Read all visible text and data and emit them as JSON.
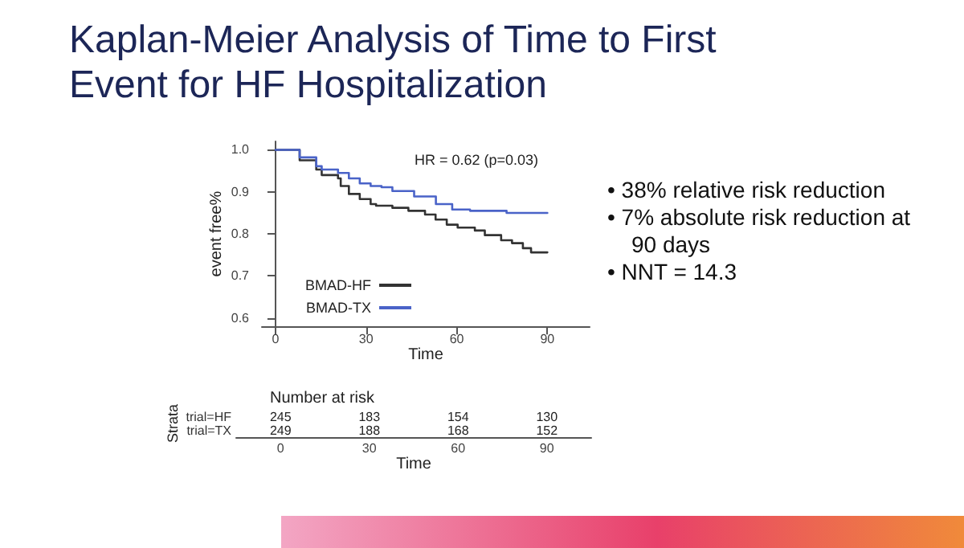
{
  "chart_data": [
    {
      "type": "step",
      "title": "Kaplan-Meier Analysis of Time to First\nEvent for HF Hospitalization",
      "xlabel": "Time",
      "ylabel": "event free%",
      "annotations": [
        "HR = 0.62 (p=0.03)",
        "• 38% relative risk reduction",
        "• 7% absolute risk reduction at 90 days",
        "• NNT = 14.3"
      ],
      "series": [
        {
          "name": "BMAD-HF",
          "color": "#333333",
          "x": [
            0,
            8,
            13.5,
            15.3,
            20.7,
            21.6,
            24.3,
            27.9,
            31.5,
            33.3,
            38.7,
            44,
            49.5,
            53,
            56.7,
            60.3,
            66,
            69.3,
            74.7,
            78.3,
            81.9,
            84.6,
            90
          ],
          "values": [
            1,
            0.975,
            0.953,
            0.94,
            0.932,
            0.914,
            0.895,
            0.883,
            0.871,
            0.867,
            0.862,
            0.855,
            0.846,
            0.834,
            0.822,
            0.815,
            0.808,
            0.797,
            0.785,
            0.778,
            0.766,
            0.756,
            0.756
          ]
        },
        {
          "name": "BMAD-TX",
          "color": "#4a63c8",
          "x": [
            0,
            8,
            13.5,
            15.3,
            20.7,
            24.3,
            27.9,
            31.5,
            35.1,
            38.7,
            45.9,
            53.1,
            58.5,
            64.4,
            75.6,
            76.5,
            90
          ],
          "values": [
            1,
            0.982,
            0.961,
            0.953,
            0.945,
            0.932,
            0.92,
            0.914,
            0.911,
            0.902,
            0.889,
            0.871,
            0.858,
            0.855,
            0.855,
            0.85,
            0.85
          ]
        }
      ],
      "xlim": [
        -4.5,
        104
      ],
      "xticks": [
        0,
        30,
        60,
        90
      ],
      "ylim": [
        0.58,
        1.02
      ],
      "yticks": [
        0.6,
        0.7,
        0.8,
        0.9,
        {
          "value": 1,
          "label": "1.0"
        }
      ],
      "grid": false,
      "legend": "bottom left",
      "marker": "none",
      "line_style": "solid"
    },
    {
      "type": "heatmap",
      "title": "Number at risk",
      "xlabel": "Time",
      "ylabel": "Strata",
      "categories": [
        "0",
        "30",
        "60",
        "90"
      ],
      "y_categories": [
        "trial=HF",
        "trial=TX"
      ],
      "data_labels": true,
      "cells": [
        [
          245,
          183,
          154,
          130
        ],
        [
          249,
          188,
          168,
          152
        ]
      ]
    }
  ]
}
